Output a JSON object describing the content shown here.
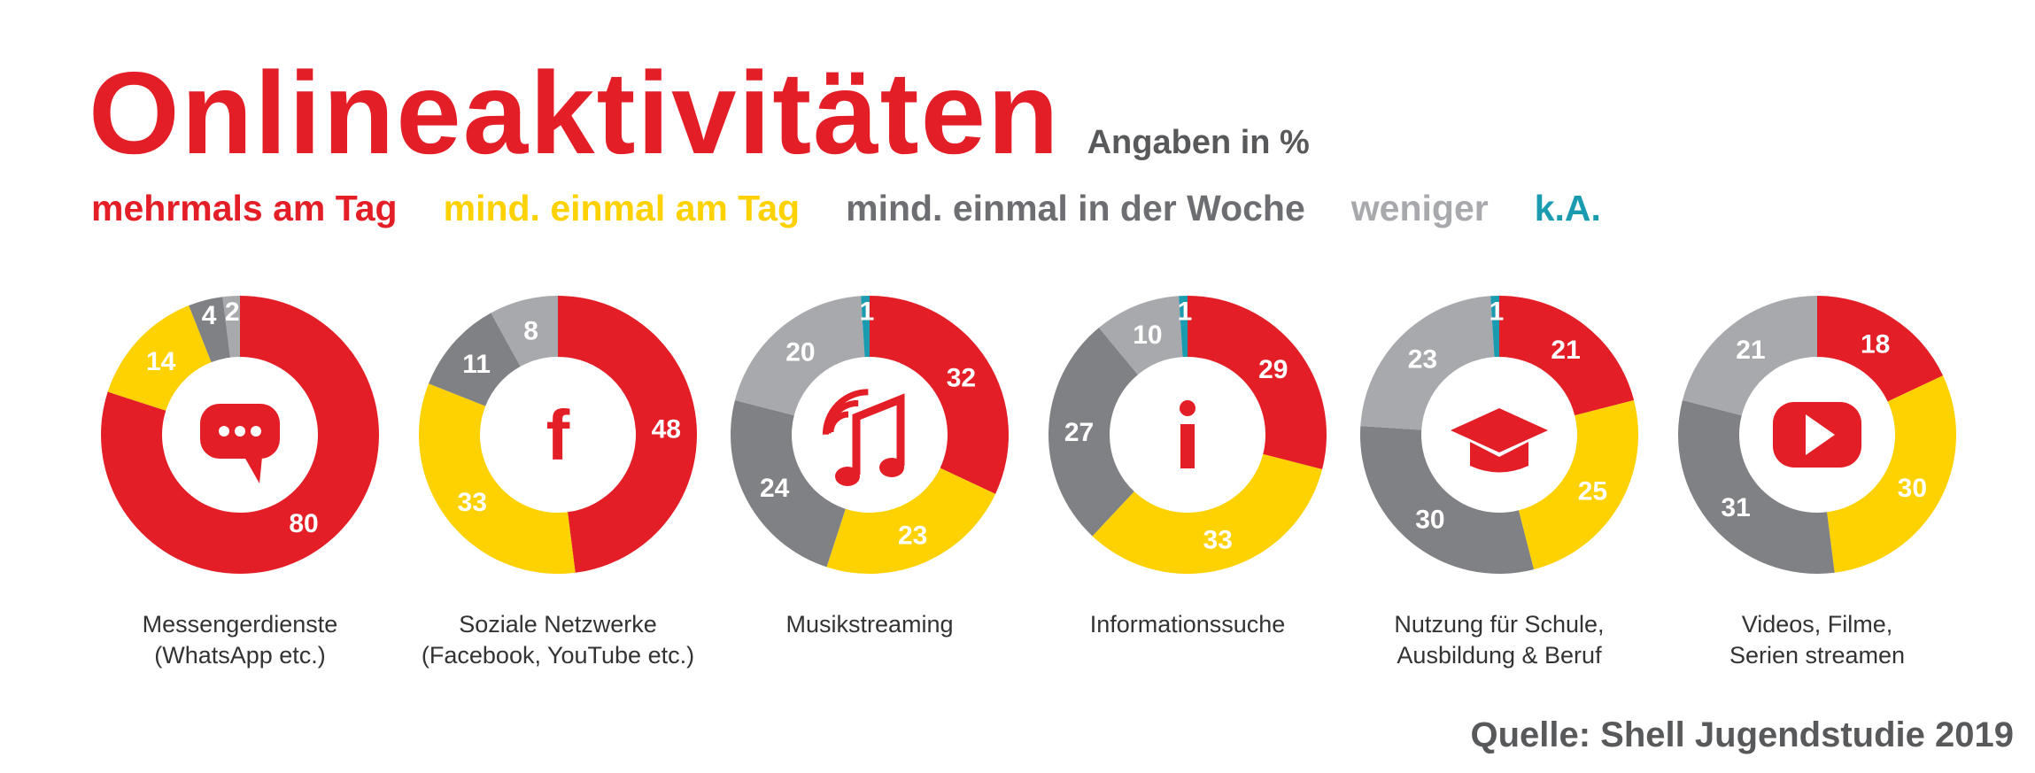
{
  "chart_data": {
    "type": "donut",
    "title": "Onlineaktivitäten",
    "unit": "Angaben in %",
    "legend": [
      {
        "label": "mehrmals am Tag",
        "color": "#e41e26"
      },
      {
        "label": "mind. einmal am Tag",
        "color": "#fed100"
      },
      {
        "label": "mind. einmal in der Woche",
        "color": "#808184"
      },
      {
        "label": "weniger",
        "color": "#a7a9ac"
      },
      {
        "label": "k.A.",
        "color": "#1a9bb0"
      }
    ],
    "legend_placement": "top",
    "charts": [
      {
        "category": [
          "Messengerdienste",
          "(WhatsApp etc.)"
        ],
        "icon": "chat-bubble-icon",
        "values": [
          80,
          14,
          4,
          2,
          0
        ]
      },
      {
        "category": [
          "Soziale Netzwerke",
          "(Facebook, YouTube etc.)"
        ],
        "icon": "facebook-icon",
        "values": [
          48,
          33,
          11,
          8,
          0
        ]
      },
      {
        "category": [
          "Musikstreaming"
        ],
        "icon": "music-note-icon",
        "values": [
          32,
          23,
          24,
          20,
          1
        ]
      },
      {
        "category": [
          "Informationssuche"
        ],
        "icon": "info-icon",
        "values": [
          29,
          33,
          27,
          10,
          1
        ]
      },
      {
        "category": [
          "Nutzung für Schule,",
          "Ausbildung & Beruf"
        ],
        "icon": "graduation-cap-icon",
        "values": [
          21,
          25,
          30,
          23,
          1
        ]
      },
      {
        "category": [
          "Videos, Filme,",
          "Serien streamen"
        ],
        "icon": "play-button-icon",
        "values": [
          18,
          30,
          31,
          21,
          0
        ]
      }
    ]
  },
  "source": "Quelle: Shell Jugendstudie 2019"
}
